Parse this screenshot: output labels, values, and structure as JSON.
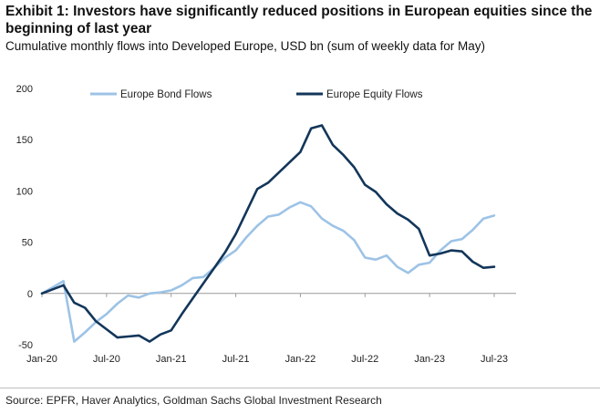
{
  "title": "Exhibit 1: Investors have significantly reduced positions in European equities since the beginning of last year",
  "subtitle": "Cumulative monthly flows into Developed Europe, USD bn (sum of weekly data for May)",
  "source": "Source: EPFR, Haver Analytics, Goldman Sachs Global Investment Research",
  "chart_data": {
    "type": "line",
    "x": [
      "Jan-20",
      "Feb-20",
      "Mar-20",
      "Apr-20",
      "May-20",
      "Jun-20",
      "Jul-20",
      "Aug-20",
      "Sep-20",
      "Oct-20",
      "Nov-20",
      "Dec-20",
      "Jan-21",
      "Feb-21",
      "Mar-21",
      "Apr-21",
      "May-21",
      "Jun-21",
      "Jul-21",
      "Aug-21",
      "Sep-21",
      "Oct-21",
      "Nov-21",
      "Dec-21",
      "Jan-22",
      "Feb-22",
      "Mar-22",
      "Apr-22",
      "May-22",
      "Jun-22",
      "Jul-22",
      "Aug-22",
      "Sep-22",
      "Oct-22",
      "Nov-22",
      "Dec-22",
      "Jan-23",
      "Feb-23",
      "Mar-23",
      "Apr-23",
      "May-23",
      "Jun-23",
      "Jul-23"
    ],
    "x_tick_labels": [
      "Jan-20",
      "Jul-20",
      "Jan-21",
      "Jul-21",
      "Jan-22",
      "Jul-22",
      "Jan-23",
      "Jul-23"
    ],
    "x_tick_indices": [
      0,
      6,
      12,
      18,
      24,
      30,
      36,
      42
    ],
    "ylim": [
      -50,
      200
    ],
    "yticks": [
      -50,
      0,
      50,
      100,
      150,
      200
    ],
    "ytick_labels": [
      "-50",
      "0",
      "50",
      "100",
      "150",
      "200"
    ],
    "grid": false,
    "legend_position": "top",
    "series": [
      {
        "name": "Europe Bond Flows",
        "color": "#9DC3E6",
        "values": [
          0,
          6,
          12,
          -47,
          -38,
          -28,
          -20,
          -10,
          -2,
          -4,
          0,
          1,
          3,
          8,
          15,
          16,
          25,
          35,
          42,
          55,
          66,
          75,
          77,
          84,
          89,
          85,
          73,
          66,
          61,
          52,
          35,
          33,
          37,
          26,
          20,
          28,
          30,
          42,
          51,
          53,
          62,
          73,
          76
        ]
      },
      {
        "name": "Europe Equity Flows",
        "color": "#13365A",
        "values": [
          0,
          4,
          8,
          -9,
          -14,
          -27,
          -35,
          -43,
          -42,
          -41,
          -47,
          -40,
          -36,
          -20,
          -5,
          10,
          25,
          40,
          58,
          80,
          102,
          108,
          118,
          128,
          138,
          161,
          164,
          145,
          135,
          123,
          106,
          99,
          87,
          78,
          72,
          63,
          37,
          39,
          42,
          41,
          31,
          25,
          26
        ]
      }
    ]
  }
}
